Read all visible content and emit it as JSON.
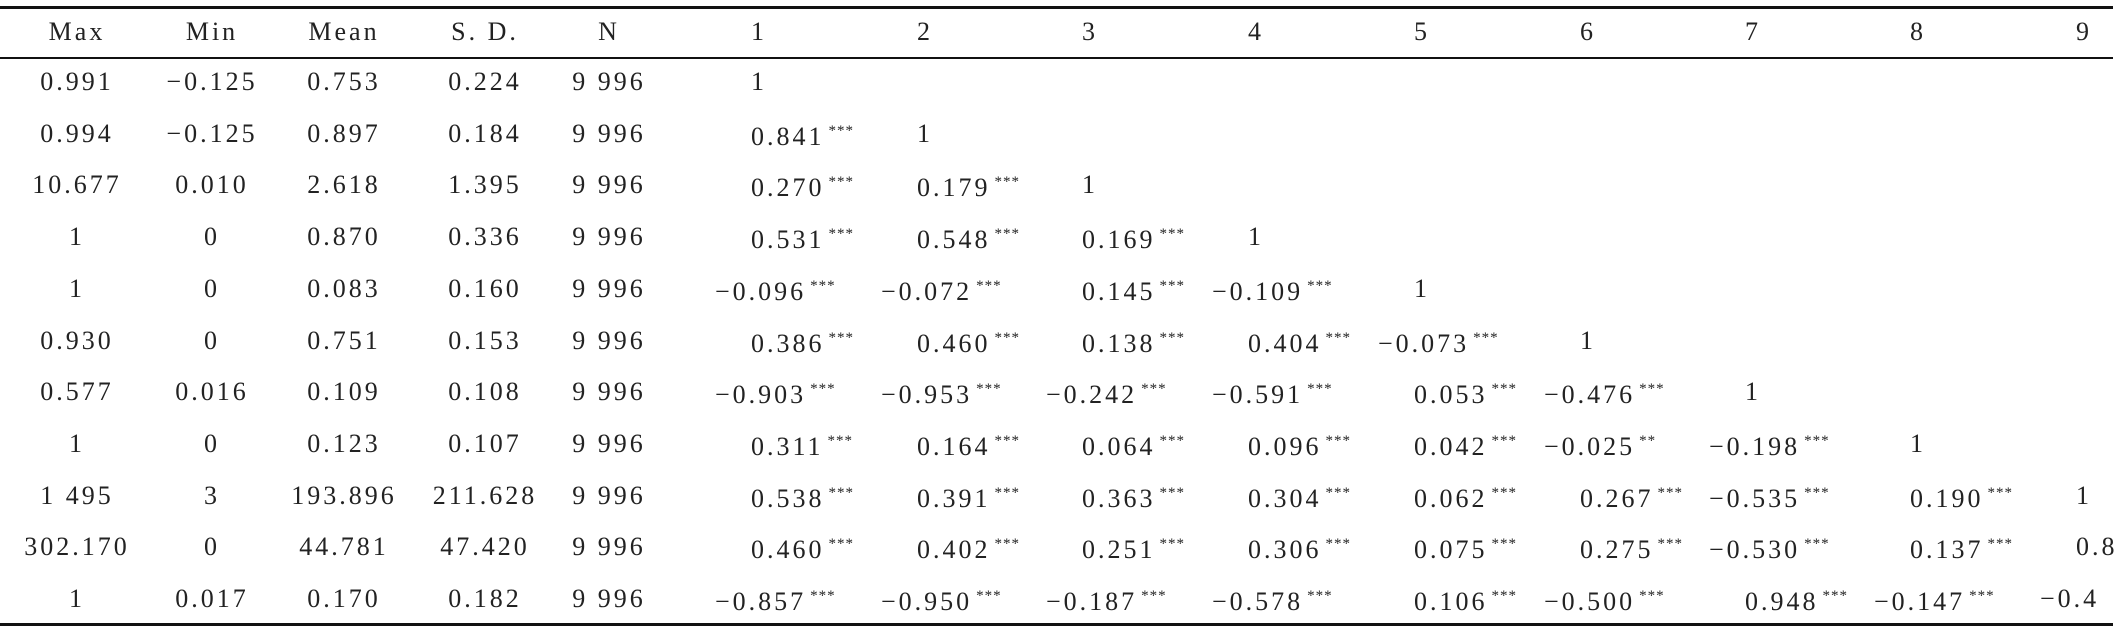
{
  "table": {
    "header": [
      "Max",
      "Min",
      "Mean",
      "S. D.",
      "N",
      "1",
      "2",
      "3",
      "4",
      "5",
      "6",
      "7",
      "8",
      "9"
    ],
    "rows": [
      [
        "0.991",
        "−0.125",
        "0.753",
        "0.224",
        "9 996",
        "1"
      ],
      [
        "0.994",
        "−0.125",
        "0.897",
        "0.184",
        "9 996",
        {
          "value": "0.841",
          "sig": "***"
        },
        "1"
      ],
      [
        "10.677",
        "0.010",
        "2.618",
        "1.395",
        "9 996",
        {
          "value": "0.270",
          "sig": "***"
        },
        {
          "value": "0.179",
          "sig": "***"
        },
        "1"
      ],
      [
        "1",
        "0",
        "0.870",
        "0.336",
        "9 996",
        {
          "value": "0.531",
          "sig": "***"
        },
        {
          "value": "0.548",
          "sig": "***"
        },
        {
          "value": "0.169",
          "sig": "***"
        },
        "1"
      ],
      [
        "1",
        "0",
        "0.083",
        "0.160",
        "9 996",
        {
          "value": "−0.096",
          "sig": "***"
        },
        {
          "value": "−0.072",
          "sig": "***"
        },
        {
          "value": "0.145",
          "sig": "***"
        },
        {
          "value": "−0.109",
          "sig": "***"
        },
        "1"
      ],
      [
        "0.930",
        "0",
        "0.751",
        "0.153",
        "9 996",
        {
          "value": "0.386",
          "sig": "***"
        },
        {
          "value": "0.460",
          "sig": "***"
        },
        {
          "value": "0.138",
          "sig": "***"
        },
        {
          "value": "0.404",
          "sig": "***"
        },
        {
          "value": "−0.073",
          "sig": "***"
        },
        "1"
      ],
      [
        "0.577",
        "0.016",
        "0.109",
        "0.108",
        "9 996",
        {
          "value": "−0.903",
          "sig": "***"
        },
        {
          "value": "−0.953",
          "sig": "***"
        },
        {
          "value": "−0.242",
          "sig": "***"
        },
        {
          "value": "−0.591",
          "sig": "***"
        },
        {
          "value": "0.053",
          "sig": "***"
        },
        {
          "value": "−0.476",
          "sig": "***"
        },
        "1"
      ],
      [
        "1",
        "0",
        "0.123",
        "0.107",
        "9 996",
        {
          "value": "0.311",
          "sig": "***"
        },
        {
          "value": "0.164",
          "sig": "***"
        },
        {
          "value": "0.064",
          "sig": "***"
        },
        {
          "value": "0.096",
          "sig": "***"
        },
        {
          "value": "0.042",
          "sig": "***"
        },
        {
          "value": "−0.025",
          "sig": "**"
        },
        {
          "value": "−0.198",
          "sig": "***"
        },
        "1"
      ],
      [
        "1 495",
        "3",
        "193.896",
        "211.628",
        "9 996",
        {
          "value": "0.538",
          "sig": "***"
        },
        {
          "value": "0.391",
          "sig": "***"
        },
        {
          "value": "0.363",
          "sig": "***"
        },
        {
          "value": "0.304",
          "sig": "***"
        },
        {
          "value": "0.062",
          "sig": "***"
        },
        {
          "value": "0.267",
          "sig": "***"
        },
        {
          "value": "−0.535",
          "sig": "***"
        },
        {
          "value": "0.190",
          "sig": "***"
        },
        "1"
      ],
      [
        "302.170",
        "0",
        "44.781",
        "47.420",
        "9 996",
        {
          "value": "0.460",
          "sig": "***"
        },
        {
          "value": "0.402",
          "sig": "***"
        },
        {
          "value": "0.251",
          "sig": "***"
        },
        {
          "value": "0.306",
          "sig": "***"
        },
        {
          "value": "0.075",
          "sig": "***"
        },
        {
          "value": "0.275",
          "sig": "***"
        },
        {
          "value": "−0.530",
          "sig": "***"
        },
        {
          "value": "0.137",
          "sig": "***"
        },
        "0.8"
      ],
      [
        "1",
        "0.017",
        "0.170",
        "0.182",
        "9 996",
        {
          "value": "−0.857",
          "sig": "***"
        },
        {
          "value": "−0.950",
          "sig": "***"
        },
        {
          "value": "−0.187",
          "sig": "***"
        },
        {
          "value": "−0.578",
          "sig": "***"
        },
        {
          "value": "0.106",
          "sig": "***"
        },
        {
          "value": "−0.500",
          "sig": "***"
        },
        {
          "value": "0.948",
          "sig": "***"
        },
        {
          "value": "−0.147",
          "sig": "***"
        },
        "−0.4"
      ]
    ]
  }
}
